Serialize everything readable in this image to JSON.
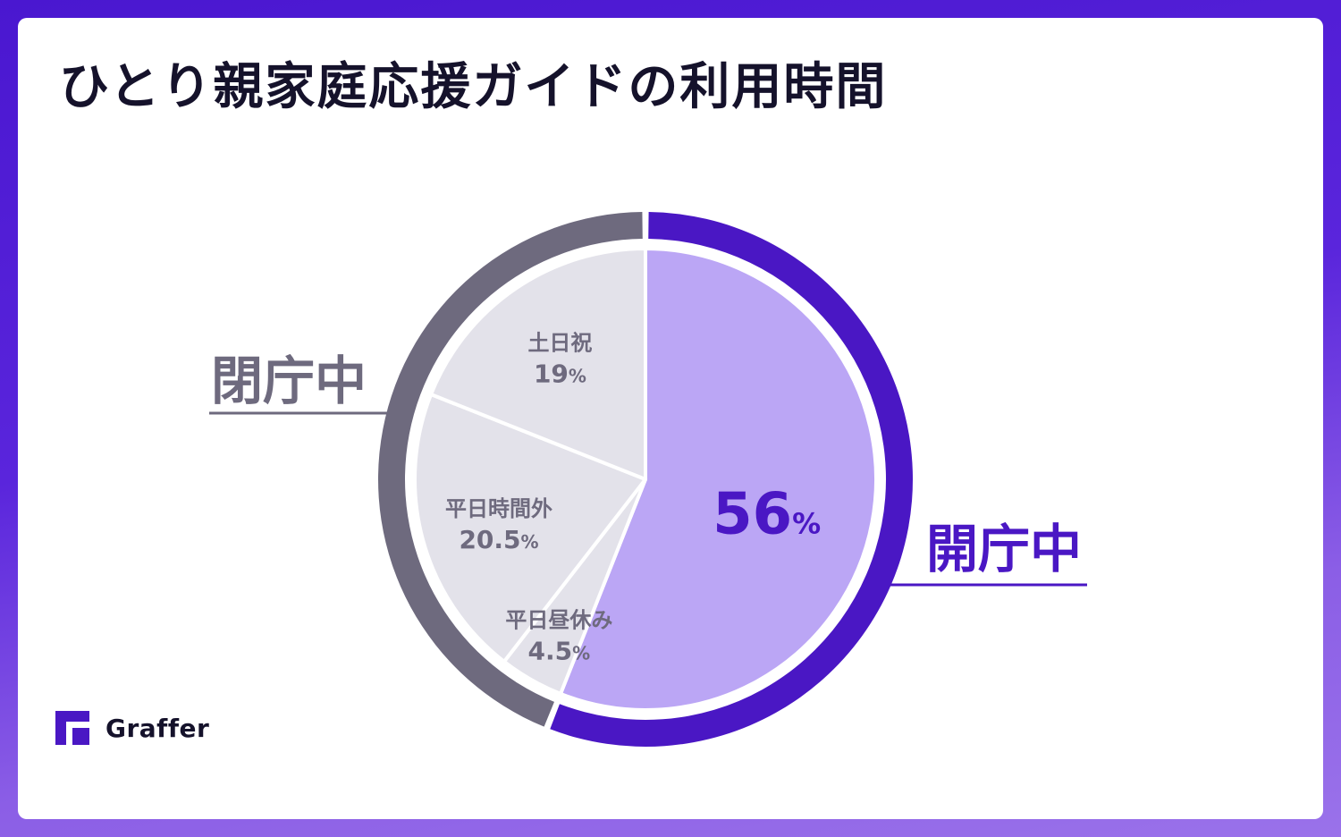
{
  "title": "ひとり親家庭応援ガイドの利用時間",
  "brand": {
    "name": "Graffer",
    "logo_icon": "graffer-logo-icon"
  },
  "colors": {
    "open_ring": "#4a17c4",
    "open_fill": "#bba6f5",
    "closed_ring": "#6e6a7e",
    "closed_fill": "#e3e2ea",
    "open_text": "#4a17c4",
    "closed_text": "#6e6a7e"
  },
  "chart_data": {
    "type": "pie",
    "title": "ひとり親家庭応援ガイドの利用時間",
    "unit": "%",
    "slices": [
      {
        "label": "",
        "value": 56,
        "value_text": "56",
        "group": "open"
      },
      {
        "label": "平日昼休み",
        "value": 4.5,
        "value_text": "4.5",
        "group": "closed"
      },
      {
        "label": "平日時間外",
        "value": 20.5,
        "value_text": "20.5",
        "group": "closed"
      },
      {
        "label": "土日祝",
        "value": 19,
        "value_text": "19",
        "group": "closed"
      }
    ],
    "groups": [
      {
        "key": "open",
        "label": "開庁中",
        "value": 56
      },
      {
        "key": "closed",
        "label": "閉庁中",
        "value": 44
      }
    ]
  }
}
